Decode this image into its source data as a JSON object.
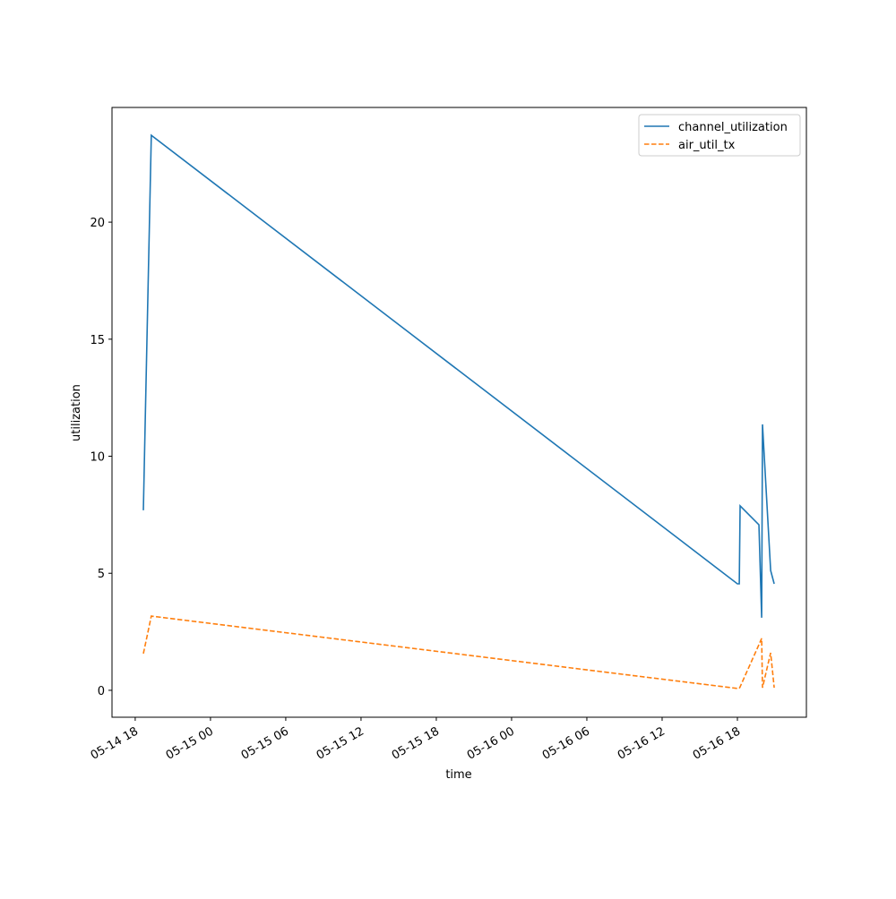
{
  "chart_data": {
    "type": "line",
    "x": [
      "05-14 18:39",
      "05-14 18:47",
      "05-14 19:17",
      "05-16 18:00",
      "05-16 18:09",
      "05-16 18:13",
      "05-16 19:43",
      "05-16 19:56",
      "05-16 20:00",
      "05-16 20:39",
      "05-16 20:56"
    ],
    "series": [
      {
        "name": "channel_utilization",
        "color": "#1f77b4",
        "dash": "solid",
        "values": [
          7.69,
          11.13,
          23.71,
          4.55,
          4.55,
          7.88,
          7.07,
          3.1,
          11.36,
          5.12,
          4.55
        ]
      },
      {
        "name": "air_util_tx",
        "color": "#ff7f0e",
        "dash": "dashed",
        "values": [
          1.57,
          1.9,
          3.17,
          0.08,
          0.08,
          0.15,
          1.95,
          2.22,
          0.11,
          1.6,
          0.11
        ]
      }
    ],
    "xlabel": "time",
    "ylabel": "utilization",
    "xlim": [
      "05-14 16:09",
      "05-16 23:30"
    ],
    "xticks": [
      {
        "value": "05-14 18:00",
        "label": "05-14 18"
      },
      {
        "value": "05-15 00:00",
        "label": "05-15 00"
      },
      {
        "value": "05-15 06:00",
        "label": "05-15 06"
      },
      {
        "value": "05-15 12:00",
        "label": "05-15 12"
      },
      {
        "value": "05-15 18:00",
        "label": "05-15 18"
      },
      {
        "value": "05-16 00:00",
        "label": "05-16 00"
      },
      {
        "value": "05-16 06:00",
        "label": "05-16 06"
      },
      {
        "value": "05-16 12:00",
        "label": "05-16 12"
      },
      {
        "value": "05-16 18:00",
        "label": "05-16 18"
      }
    ],
    "ylim": [
      -1.15,
      24.9
    ],
    "yticks": [
      0,
      5,
      10,
      15,
      20
    ],
    "grid": false,
    "legend": "upper right"
  }
}
